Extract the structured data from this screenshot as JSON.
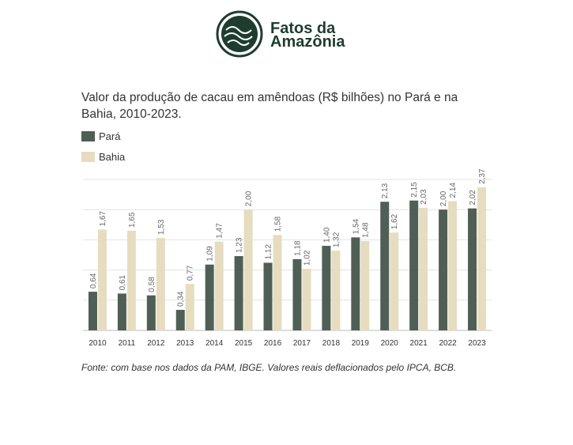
{
  "header": {
    "logo_line1": "Fatos da",
    "logo_line2": "Amazônia"
  },
  "chart_data": {
    "type": "bar",
    "title": "Valor da produção de cacau em amêndoas (R$ bilhões) no Pará e na Bahia, 2010-2023.",
    "categories": [
      "2010",
      "2011",
      "2012",
      "2013",
      "2014",
      "2015",
      "2016",
      "2017",
      "2018",
      "2019",
      "2020",
      "2021",
      "2022",
      "2023"
    ],
    "series": [
      {
        "name": "Pará",
        "color": "#4f5f55",
        "values": [
          0.64,
          0.61,
          0.58,
          0.34,
          1.09,
          1.23,
          1.12,
          1.18,
          1.4,
          1.54,
          2.13,
          2.15,
          2.0,
          2.02
        ],
        "value_labels": [
          "0,64",
          "0,61",
          "0,58",
          "0,34",
          "1,09",
          "1,23",
          "1,12",
          "1,18",
          "1,40",
          "1,54",
          "2,13",
          "2,15",
          "2,00",
          "2,02"
        ]
      },
      {
        "name": "Bahia",
        "color": "#e6dcbf",
        "values": [
          1.67,
          1.65,
          1.53,
          0.77,
          1.47,
          2.0,
          1.58,
          1.02,
          1.32,
          1.48,
          1.62,
          2.03,
          2.14,
          2.37
        ],
        "value_labels": [
          "1,67",
          "1,65",
          "1,53",
          "0,77",
          "1,47",
          "2,00",
          "1,58",
          "1,02",
          "1,32",
          "1,48",
          "1,62",
          "2,03",
          "2,14",
          "2,37"
        ]
      }
    ],
    "ylim": [
      0,
      2.5
    ],
    "yticks": [
      0,
      0.5,
      1,
      1.5,
      2,
      2.5
    ],
    "grid": true,
    "legend": "top-left",
    "source": "Fonte: com base nos dados da PAM, IBGE. Valores reais deflacionados pelo IPCA, BCB."
  }
}
